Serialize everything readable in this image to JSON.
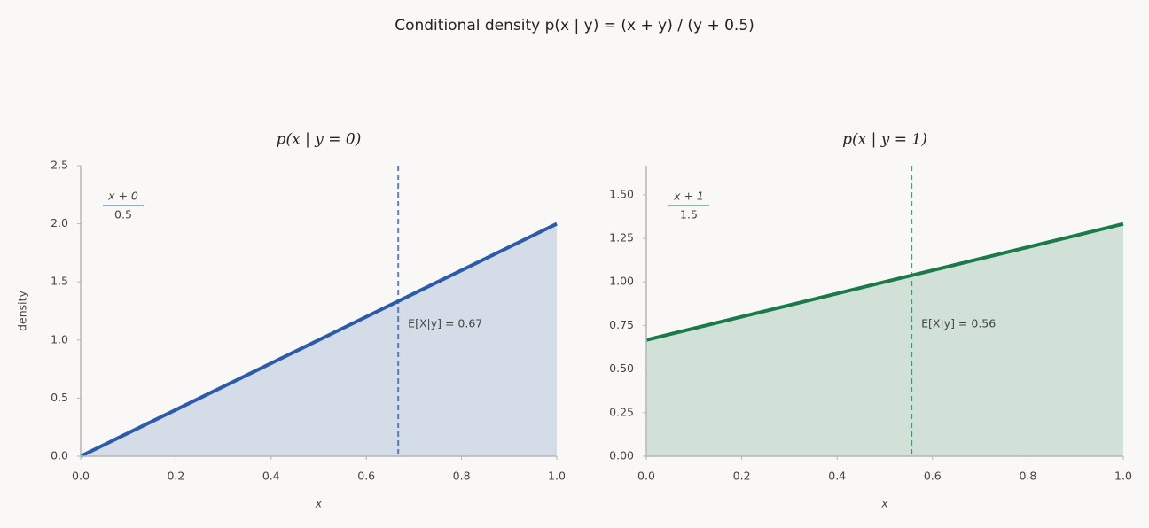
{
  "title": "Conditional density  p(x | y) = (x + y) / (y + 0.5)",
  "chart_data": [
    {
      "type": "line",
      "title": "p(x | y = 0)",
      "x_label": "x",
      "y_label": "density",
      "x": [
        0,
        1
      ],
      "values": [
        0,
        2
      ],
      "color": "#2c5ca8",
      "fill": true,
      "xlim": [
        0,
        1
      ],
      "ylim": [
        0,
        2.5
      ],
      "xticks": [
        {
          "value": 0,
          "label": "0.0"
        },
        {
          "value": 0.2,
          "label": "0.2"
        },
        {
          "value": 0.4,
          "label": "0.4"
        },
        {
          "value": 0.6,
          "label": "0.6"
        },
        {
          "value": 0.8,
          "label": "0.8"
        },
        {
          "value": 1,
          "label": "1.0"
        }
      ],
      "yticks": [
        {
          "value": 0,
          "label": "0.0"
        },
        {
          "value": 0.5,
          "label": "0.5"
        },
        {
          "value": 1,
          "label": "1.0"
        },
        {
          "value": 1.5,
          "label": "1.5"
        },
        {
          "value": 2,
          "label": "2.0"
        },
        {
          "value": 2.5,
          "label": "2.5"
        }
      ],
      "mean_line": {
        "x": 0.667,
        "label": "E[X|y] = 0.67"
      },
      "formula": {
        "numerator": "x + 0",
        "denominator": "0.5"
      }
    },
    {
      "type": "line",
      "title": "p(x | y = 1)",
      "x_label": "x",
      "x": [
        0,
        1
      ],
      "values": [
        0.667,
        1.333
      ],
      "color": "#1b7a4a",
      "fill": true,
      "xlim": [
        0,
        1
      ],
      "ylim": [
        0,
        1.667
      ],
      "xticks": [
        {
          "value": 0,
          "label": "0.0"
        },
        {
          "value": 0.2,
          "label": "0.2"
        },
        {
          "value": 0.4,
          "label": "0.4"
        },
        {
          "value": 0.6,
          "label": "0.6"
        },
        {
          "value": 0.8,
          "label": "0.8"
        },
        {
          "value": 1,
          "label": "1.0"
        }
      ],
      "yticks": [
        {
          "value": 0,
          "label": "0.00"
        },
        {
          "value": 0.25,
          "label": "0.25"
        },
        {
          "value": 0.5,
          "label": "0.50"
        },
        {
          "value": 0.75,
          "label": "0.75"
        },
        {
          "value": 1,
          "label": "1.00"
        },
        {
          "value": 1.25,
          "label": "1.25"
        },
        {
          "value": 1.5,
          "label": "1.50"
        }
      ],
      "mean_line": {
        "x": 0.556,
        "label": "E[X|y] = 0.56"
      },
      "formula": {
        "numerator": "x + 1",
        "denominator": "1.5"
      }
    }
  ]
}
